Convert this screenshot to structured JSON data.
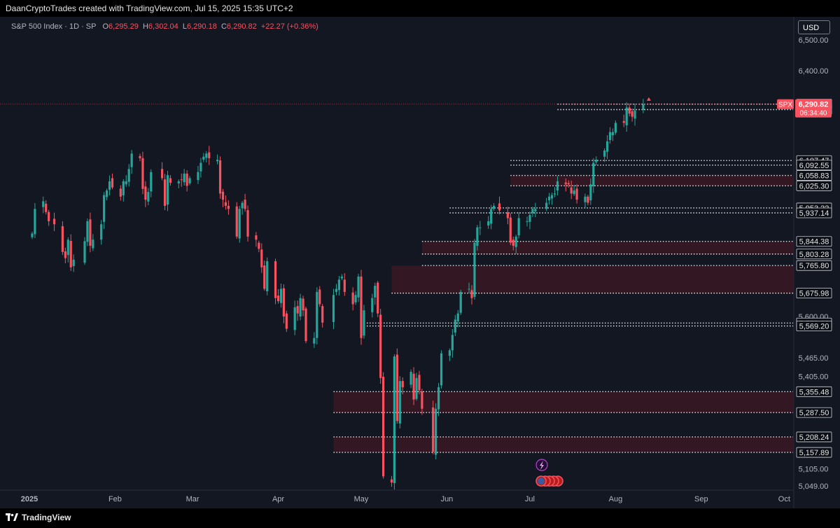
{
  "header": {
    "credit": "DaanCryptoTrades created with TradingView.com, Jul 15, 2025 15:35 UTC+2"
  },
  "legend": {
    "symbol": "S&P 500 Index · 1D · SP",
    "o_label": "O",
    "o": "6,295.29",
    "h_label": "H",
    "h": "6,302.04",
    "l_label": "L",
    "l": "6,290.18",
    "c_label": "C",
    "c": "6,290.82",
    "change": "+22.27 (+0.36%)"
  },
  "currency_button": "USD",
  "footer": {
    "brand": "TradingView"
  },
  "colors": {
    "up": "#26a69a",
    "down": "#f7525f",
    "background": "#131722",
    "zone": "#3a1823",
    "price_tag": "#f7525f"
  },
  "chart_data": {
    "type": "candlestick",
    "symbol": "SPX",
    "ylim": [
      5035,
      6575
    ],
    "x_ticks": [
      "2025",
      "Feb",
      "Mar",
      "Apr",
      "May",
      "Jun",
      "Jul",
      "Aug",
      "Sep",
      "Oct"
    ],
    "y_ticks": [
      {
        "value": 6500,
        "label": "6,500.00"
      },
      {
        "value": 6400,
        "label": "6,400.00"
      },
      {
        "value": 5600,
        "label": "5,600.00"
      },
      {
        "value": 5465,
        "label": "5,465.00"
      },
      {
        "value": 5405,
        "label": "5,405.00"
      },
      {
        "value": 5105,
        "label": "5,105.00"
      },
      {
        "value": 5049,
        "label": "5,049.00"
      }
    ],
    "last_price": {
      "symbol": "SPX",
      "price": "6,290.82",
      "countdown": "06:34:40",
      "value": 6290.82
    },
    "levels": [
      {
        "value": 6290.85,
        "label": "6,290.85",
        "start_date": "2025-07-11"
      },
      {
        "value": 6273.15,
        "label": "6,273.15",
        "start_date": "2025-07-11"
      },
      {
        "value": 6107.47,
        "label": "6,107.47",
        "start_date": "2025-06-24"
      },
      {
        "value": 6092.55,
        "label": "6,092.55",
        "start_date": "2025-06-24"
      },
      {
        "value": 6058.83,
        "label": "6,058.83",
        "start_date": "2025-06-24"
      },
      {
        "value": 6025.3,
        "label": "6,025.30",
        "start_date": "2025-06-24"
      },
      {
        "value": 5953.22,
        "label": "5,953.22",
        "start_date": "2025-06-02"
      },
      {
        "value": 5937.14,
        "label": "5,937.14",
        "start_date": "2025-06-02"
      },
      {
        "value": 5844.38,
        "label": "5,844.38",
        "start_date": "2025-05-23"
      },
      {
        "value": 5803.28,
        "label": "5,803.28",
        "start_date": "2025-05-23"
      },
      {
        "value": 5765.8,
        "label": "5,765.80",
        "start_date": "2025-05-23"
      },
      {
        "value": 5675.98,
        "label": "5,675.98",
        "start_date": "2025-05-12"
      },
      {
        "value": 5578.83,
        "label": "5,578.83",
        "start_date": "2025-05-01"
      },
      {
        "value": 5569.2,
        "label": "5,569.20",
        "start_date": "2025-05-01"
      },
      {
        "value": 5355.48,
        "label": "5,355.48",
        "start_date": "2025-04-21"
      },
      {
        "value": 5287.5,
        "label": "5,287.50",
        "start_date": "2025-04-21"
      },
      {
        "value": 5208.24,
        "label": "5,208.24",
        "start_date": "2025-04-21"
      },
      {
        "value": 5157.89,
        "label": "5,157.89",
        "start_date": "2025-04-21"
      }
    ],
    "zones": [
      {
        "top": 6058.83,
        "bottom": 6025.3,
        "start_date": "2025-06-24"
      },
      {
        "top": 5844.38,
        "bottom": 5803.28,
        "start_date": "2025-05-23"
      },
      {
        "top": 5765.8,
        "bottom": 5675.98,
        "start_date": "2025-05-12"
      },
      {
        "top": 5355.48,
        "bottom": 5287.5,
        "start_date": "2025-04-21"
      },
      {
        "top": 5208.24,
        "bottom": 5157.89,
        "start_date": "2025-04-21"
      }
    ],
    "closes": [
      5870,
      5950,
      5975,
      5940,
      5910,
      5900,
      5810,
      5790,
      5850,
      5760,
      5785,
      5845,
      5910,
      5830,
      5850,
      5900,
      5995,
      6010,
      6040,
      6020,
      5990,
      6040,
      6040,
      6080,
      6130,
      6115,
      6015,
      5980,
      6005,
      6070,
      6050,
      5960,
      6060,
      6035,
      6040,
      6045,
      6065,
      6025,
      6050,
      6070,
      6100,
      6120,
      6130,
      6115,
      6110,
      6000,
      5980,
      5960,
      5950,
      5860,
      5950,
      5970,
      5950,
      5860,
      5850,
      5820,
      5760,
      5690,
      5780,
      5660,
      5650,
      5690,
      5600,
      5560,
      5630,
      5610,
      5660,
      5620,
      5520,
      5530,
      5680,
      5640,
      5580,
      5670,
      5690,
      5720,
      5730,
      5680,
      5640,
      5670,
      5730,
      5530,
      5620,
      5660,
      5700,
      5610,
      5400,
      5080,
      5060,
      5470,
      5260,
      5390,
      5370,
      5420,
      5330,
      5400,
      5360,
      5300,
      5160,
      5300,
      5370,
      5480,
      5490,
      5540,
      5590,
      5610,
      5680,
      5690,
      5660,
      5840,
      5890,
      5890,
      5910,
      5950,
      5960,
      5945,
      5920,
      5840,
      5830,
      5860,
      5920,
      5910,
      5930,
      5950,
      5950,
      5970,
      5990,
      5995,
      6000,
      6040,
      6030,
      6030,
      6000,
      6010,
      5980,
      5990,
      5970,
      6030,
      6100,
      6110,
      6140,
      6170,
      6200,
      6200,
      6230,
      6230,
      6280,
      6260,
      6250,
      6270,
      6290
    ],
    "high_marker": "6,302.04"
  }
}
